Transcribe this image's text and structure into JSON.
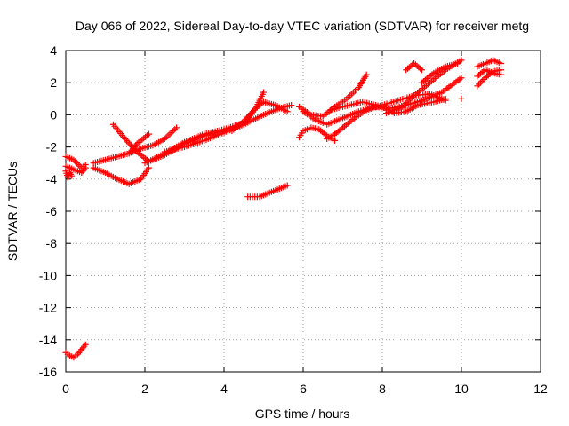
{
  "chart_data": {
    "type": "scatter",
    "title": "Day 066 of 2022, Sidereal Day-to-day VTEC variation (SDTVAR) for receiver metg",
    "xlabel": "GPS time / hours",
    "ylabel": "SDTVAR / TECUs",
    "xlim": [
      0,
      12
    ],
    "ylim": [
      -16,
      4
    ],
    "xticks": [
      0,
      2,
      4,
      6,
      8,
      10,
      12
    ],
    "yticks": [
      4,
      2,
      0,
      -2,
      -4,
      -6,
      -8,
      -10,
      -12,
      -14,
      -16
    ],
    "grid": true,
    "marker": "+",
    "color": "#ff0000",
    "tracks": [
      {
        "x": [
          0.0,
          0.1,
          0.2,
          0.3,
          0.4,
          0.5
        ],
        "y": [
          -14.8,
          -15.0,
          -15.1,
          -14.9,
          -14.6,
          -14.3
        ]
      },
      {
        "x": [
          0.0,
          0.05,
          0.1,
          0.15
        ],
        "y": [
          -3.5,
          -3.9,
          -3.6,
          -3.8
        ]
      },
      {
        "x": [
          0.0,
          0.2,
          0.4,
          0.5
        ],
        "y": [
          -2.6,
          -2.8,
          -3.3,
          -3.1
        ]
      },
      {
        "x": [
          0.0,
          0.2,
          0.4,
          0.5
        ],
        "y": [
          -3.2,
          -3.4,
          -3.6,
          -3.3
        ]
      },
      {
        "x": [
          0.7,
          1.0,
          1.3,
          1.6,
          1.9,
          2.2,
          2.5,
          2.8
        ],
        "y": [
          -3.0,
          -2.8,
          -2.6,
          -2.4,
          -2.1,
          -1.9,
          -1.5,
          -0.8
        ]
      },
      {
        "x": [
          0.7,
          1.0,
          1.3,
          1.6,
          1.9,
          2.1
        ],
        "y": [
          -3.3,
          -3.6,
          -4.0,
          -4.3,
          -4.0,
          -3.3
        ]
      },
      {
        "x": [
          1.2,
          1.5,
          1.8,
          2.1,
          2.5,
          3.0,
          3.5,
          4.0,
          4.5
        ],
        "y": [
          -0.6,
          -1.5,
          -2.3,
          -2.9,
          -2.4,
          -1.7,
          -1.2,
          -0.9,
          -0.5
        ]
      },
      {
        "x": [
          1.6,
          1.8,
          2.1
        ],
        "y": [
          -2.4,
          -1.8,
          -1.2
        ]
      },
      {
        "x": [
          2.0,
          2.5,
          3.0,
          3.5,
          4.0,
          4.5,
          5.0,
          5.4,
          5.7
        ],
        "y": [
          -3.0,
          -2.5,
          -1.8,
          -1.3,
          -1.0,
          -0.6,
          0.0,
          0.4,
          0.6
        ]
      },
      {
        "x": [
          2.5,
          3.0,
          3.5,
          4.0,
          4.5,
          4.8,
          5.0
        ],
        "y": [
          -2.3,
          -2.0,
          -1.6,
          -1.1,
          -0.6,
          0.4,
          1.4
        ]
      },
      {
        "x": [
          4.2,
          4.5,
          4.8,
          5.0,
          5.3,
          5.6
        ],
        "y": [
          -1.0,
          -0.4,
          0.4,
          0.8,
          0.6,
          0.2
        ]
      },
      {
        "x": [
          4.6,
          4.9,
          5.2,
          5.4,
          5.6
        ],
        "y": [
          -5.1,
          -5.1,
          -4.8,
          -4.6,
          -4.4
        ]
      },
      {
        "x": [
          5.9,
          6.2,
          6.5,
          6.8,
          7.1,
          7.4,
          7.6
        ],
        "y": [
          0.5,
          0.0,
          -0.1,
          0.5,
          1.0,
          1.7,
          2.5
        ]
      },
      {
        "x": [
          5.9,
          6.0,
          6.2,
          6.4,
          6.6,
          6.8
        ],
        "y": [
          -1.4,
          -1.0,
          -0.8,
          -0.9,
          -1.3,
          -1.6
        ]
      },
      {
        "x": [
          6.0,
          6.3,
          6.6,
          7.0,
          7.4,
          7.8,
          8.2,
          8.6,
          9.0,
          9.5,
          10.0
        ],
        "y": [
          0.2,
          -0.3,
          -0.6,
          -0.2,
          0.2,
          0.5,
          0.4,
          0.6,
          0.9,
          1.4,
          2.3
        ]
      },
      {
        "x": [
          6.6,
          6.8,
          7.0,
          7.3,
          7.6,
          8.0,
          8.4,
          8.8,
          9.2,
          9.6
        ],
        "y": [
          -1.5,
          -1.2,
          -0.8,
          -0.2,
          0.3,
          0.6,
          0.9,
          1.2,
          1.3,
          0.9
        ]
      },
      {
        "x": [
          6.7,
          7.0,
          7.5,
          8.0,
          8.3,
          8.6,
          8.9,
          9.3,
          9.6
        ],
        "y": [
          0.3,
          0.5,
          0.8,
          0.5,
          0.1,
          0.2,
          0.6,
          0.8,
          1.0
        ]
      },
      {
        "x": [
          8.1,
          8.5,
          8.8,
          9.2,
          9.6,
          10.0
        ],
        "y": [
          0.1,
          0.5,
          1.2,
          2.0,
          2.8,
          3.4
        ]
      },
      {
        "x": [
          8.6,
          8.8,
          9.0
        ],
        "y": [
          2.8,
          3.2,
          2.8
        ]
      },
      {
        "x": [
          9.0,
          9.3,
          9.6,
          9.9
        ],
        "y": [
          2.0,
          2.6,
          3.0,
          3.2
        ]
      },
      {
        "x": [
          10.0
        ],
        "y": [
          1.0
        ]
      },
      {
        "x": [
          10.4,
          10.6,
          10.8,
          11.0
        ],
        "y": [
          3.0,
          3.2,
          3.4,
          3.2
        ]
      },
      {
        "x": [
          10.4,
          10.6,
          10.8,
          11.0
        ],
        "y": [
          2.4,
          2.8,
          2.6,
          2.5
        ]
      },
      {
        "x": [
          10.4,
          10.6,
          10.8,
          11.0
        ],
        "y": [
          1.8,
          2.3,
          2.7,
          2.8
        ]
      }
    ]
  }
}
